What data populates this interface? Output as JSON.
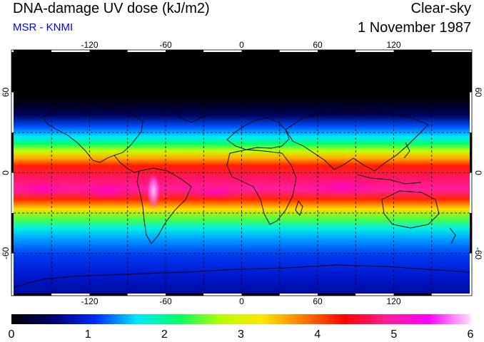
{
  "title": "DNA-damage UV dose (kJ/m2)",
  "subtitle": "MSR - KNMI",
  "scenario": "Clear-sky",
  "date": "1 November 1987",
  "colors": {
    "subtitle": "#0000ee"
  },
  "map": {
    "lon_range": [
      -180,
      180
    ],
    "lat_range": [
      -90,
      90
    ],
    "lon_ticks": [
      -120,
      -60,
      0,
      60,
      120
    ],
    "lon_tick_labels": [
      "-120",
      "-60",
      "0",
      "60",
      "120"
    ],
    "lat_ticks": [
      60,
      0,
      -60
    ],
    "lat_tick_labels": [
      "60",
      "0",
      "-60"
    ],
    "grid": "dashed every 30 degrees",
    "coastlines": true
  },
  "colorbar": {
    "min": 0,
    "max": 6,
    "tick_labels": [
      "0",
      "1",
      "2",
      "3",
      "4",
      "5",
      "6"
    ],
    "stops": [
      "#000000",
      "#00006e",
      "#0028ff",
      "#00e6ff",
      "#00ff64",
      "#b4ff00",
      "#ffe600",
      "#ff7800",
      "#ff0000",
      "#ff1e96",
      "#ff00ff",
      "#ffdcff"
    ]
  }
}
